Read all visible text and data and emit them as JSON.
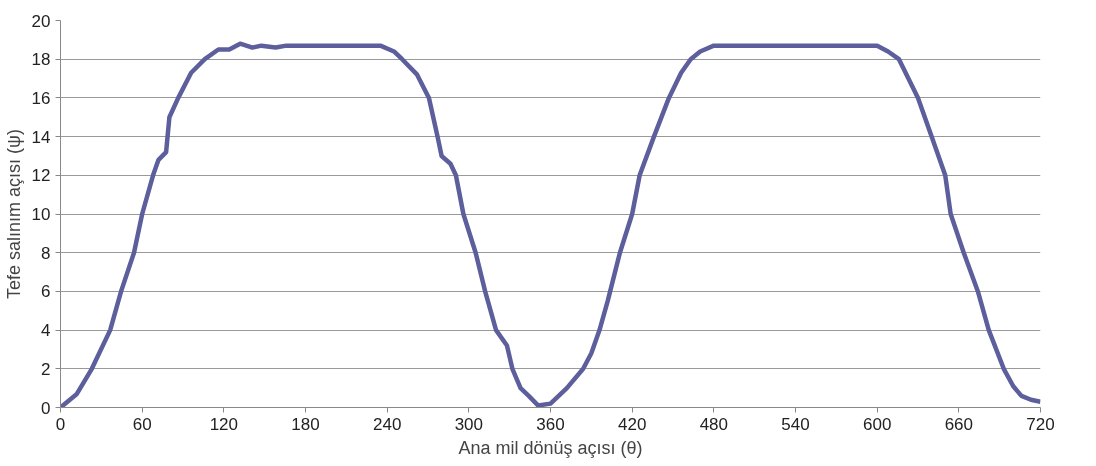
{
  "chart_data": {
    "type": "line",
    "xlabel": "Ana mil dönüş açısı (θ)",
    "ylabel": "Tefe salınım açısı (ψ)",
    "series": [
      {
        "color": "#5c5f9b",
        "x": [
          0,
          12,
          23,
          36.5,
          44.5,
          54,
          60,
          68,
          72,
          77.6,
          80,
          86.5,
          96,
          106,
          116,
          124,
          132,
          141,
          147.6,
          158,
          166,
          180,
          200,
          235,
          245,
          251,
          262,
          270.7,
          277,
          280,
          286.5,
          290.5,
          296,
          305,
          312,
          320,
          328,
          332,
          338,
          344,
          351,
          360,
          372,
          384,
          390,
          396,
          402,
          411,
          420,
          425.5,
          436,
          447,
          456,
          463,
          470,
          480,
          489,
          520,
          560,
          600,
          608,
          616,
          630,
          640,
          650,
          654,
          663.6,
          674,
          682,
          693,
          700,
          706,
          713,
          720
        ],
        "values": [
          0,
          0.7,
          2,
          4,
          6,
          8,
          10,
          12,
          12.8,
          13.2,
          15,
          16,
          17.3,
          18,
          18.5,
          18.5,
          18.8,
          18.6,
          18.7,
          18.6,
          18.7,
          18.7,
          18.7,
          18.7,
          18.4,
          18,
          17.2,
          16,
          14,
          13,
          12.6,
          12,
          10,
          8,
          6,
          4,
          3.2,
          2,
          1,
          0.6,
          0.1,
          0.2,
          1,
          2,
          2.8,
          4,
          5.5,
          8,
          10,
          12,
          14,
          16,
          17.3,
          18,
          18.4,
          18.7,
          18.7,
          18.7,
          18.7,
          18.7,
          18.4,
          18,
          16,
          14,
          12,
          10,
          8,
          6,
          4,
          2,
          1.1,
          0.6,
          0.4,
          0.3
        ]
      }
    ],
    "xlim": [
      0,
      720
    ],
    "ylim": [
      0,
      20
    ],
    "xticks": [
      0,
      60,
      120,
      180,
      240,
      300,
      360,
      420,
      480,
      540,
      600,
      660,
      720
    ],
    "yticks": [
      0,
      2,
      4,
      6,
      8,
      10,
      12,
      14,
      16,
      18,
      20
    ],
    "grid": "y",
    "marker": "none",
    "line_style": "solid"
  }
}
